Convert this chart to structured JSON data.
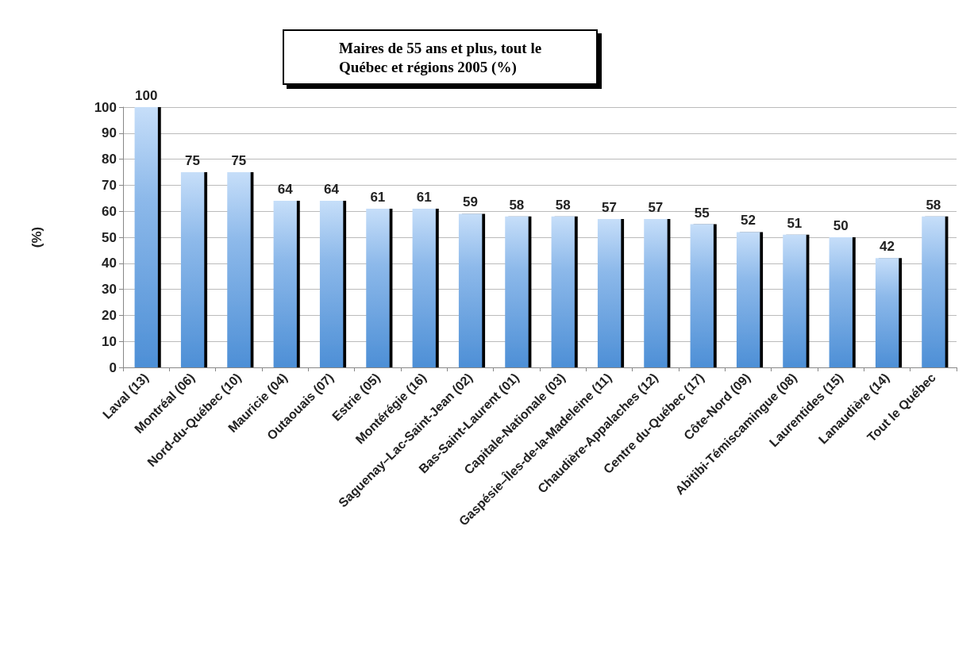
{
  "chart_data": {
    "type": "bar",
    "title": "Maires de 55 ans et plus, tout le\nQuébec et régions 2005 (%)",
    "ylabel": "(%)",
    "categories": [
      "Laval (13)",
      "Montréal (06)",
      "Nord-du-Québec (10)",
      "Mauricie (04)",
      "Outaouais (07)",
      "Estrie (05)",
      "Montérégie (16)",
      "Saguenay–Lac-Saint-Jean (02)",
      "Bas-Saint-Laurent (01)",
      "Capitale-Nationale (03)",
      "Gaspésie–Îles-de-la-Madeleine (11)",
      "Chaudière-Appalaches (12)",
      "Centre du-Québec (17)",
      "Côte-Nord (09)",
      "Abitibi-Témiscamingue (08)",
      "Laurentides (15)",
      "Lanaudière (14)",
      "Tout le Québec"
    ],
    "values": [
      100,
      75,
      75,
      64,
      64,
      61,
      61,
      59,
      58,
      58,
      57,
      57,
      55,
      52,
      51,
      50,
      42,
      58
    ],
    "color": "#8db9ea",
    "ylim": [
      0,
      100
    ],
    "yticks": [
      0,
      10,
      20,
      30,
      40,
      50,
      60,
      70,
      80,
      90,
      100
    ],
    "grid": "y",
    "data_labels": true
  }
}
